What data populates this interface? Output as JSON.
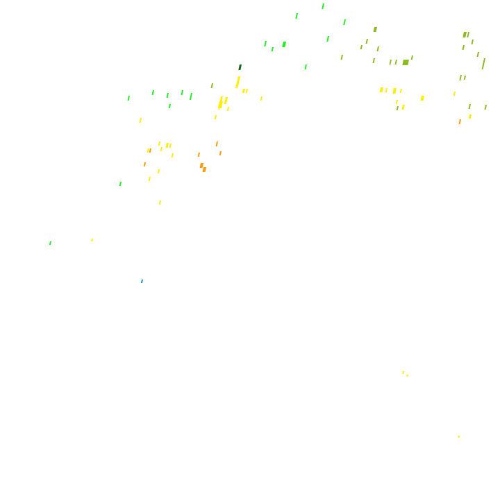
{
  "map": {
    "background": "#ffffff",
    "legend_colors": {
      "green": "#22ee22",
      "olive": "#8cbb22",
      "yellow": "#ffee00",
      "orange": "#ff9a00",
      "dark_green": "#126612",
      "blue": "#1a8ad0"
    }
  }
}
